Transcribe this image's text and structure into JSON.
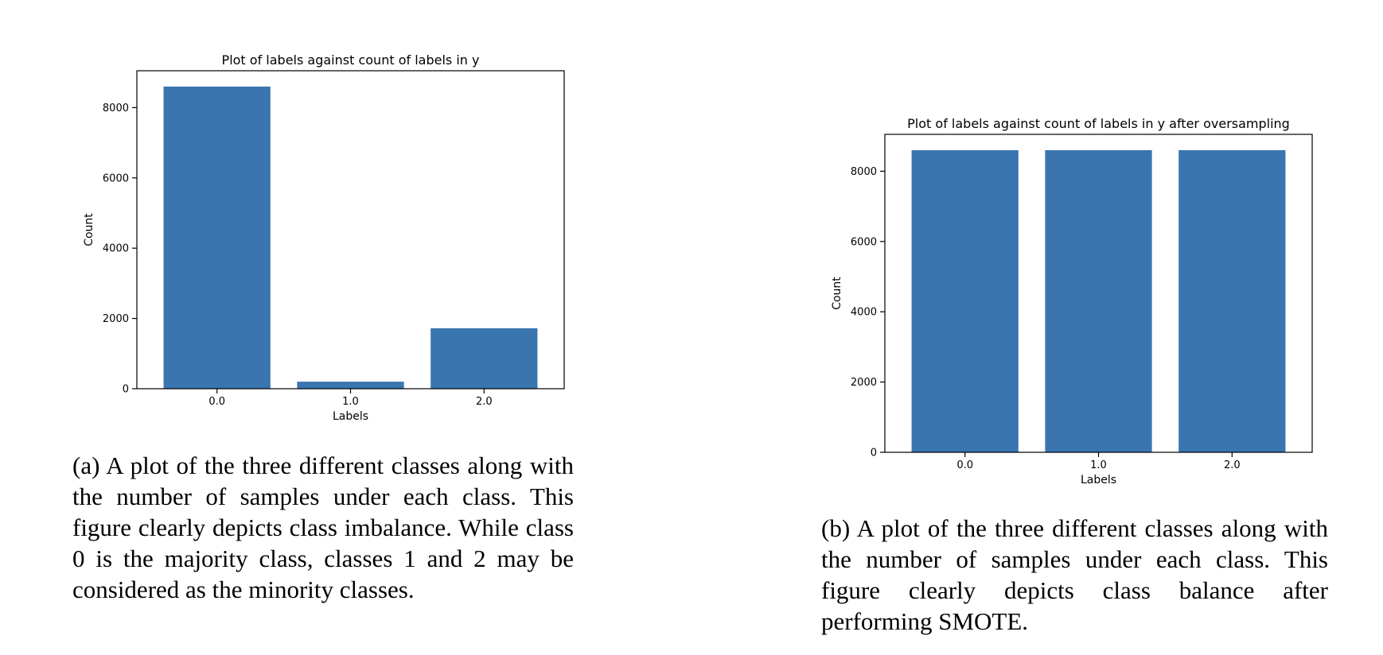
{
  "chart_data": [
    {
      "type": "bar",
      "title": "Plot of labels against count of labels in y",
      "xlabel": "Labels",
      "ylabel": "Count",
      "categories": [
        "0.0",
        "1.0",
        "2.0"
      ],
      "values": [
        8600,
        200,
        1720
      ],
      "ylim": [
        0,
        9050
      ],
      "yticks": [
        0,
        2000,
        4000,
        6000,
        8000
      ],
      "bar_color": "#3a75b0",
      "grid": false,
      "legend": "none"
    },
    {
      "type": "bar",
      "title": "Plot of labels against count of labels in y after oversampling",
      "xlabel": "Labels",
      "ylabel": "Count",
      "categories": [
        "0.0",
        "1.0",
        "2.0"
      ],
      "values": [
        8600,
        8600,
        8600
      ],
      "ylim": [
        0,
        9050
      ],
      "yticks": [
        0,
        2000,
        4000,
        6000,
        8000
      ],
      "bar_color": "#3a75b0",
      "grid": false,
      "legend": "none"
    }
  ],
  "captions": {
    "a": "(a) A plot of the three different classes along with the number of samples under each class. This figure clearly depicts class imbalance. While class 0 is the majority class, classes 1 and 2 may be considered as the minority classes.",
    "b": "(b) A plot of the three different classes along with the number of samples under each class. This figure clearly depicts class balance after performing SMOTE."
  }
}
